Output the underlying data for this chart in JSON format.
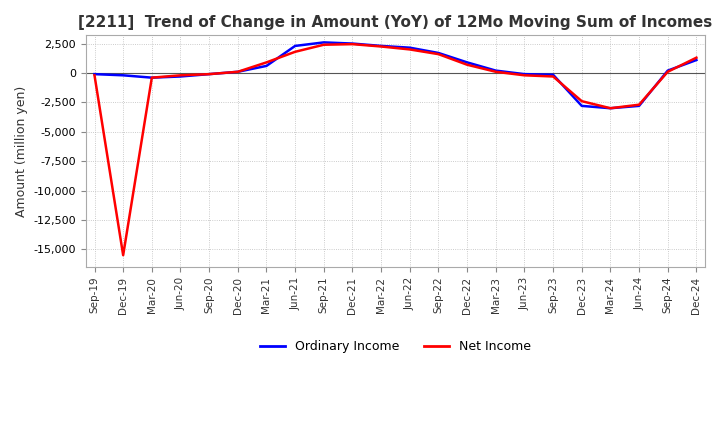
{
  "title": "[2211]  Trend of Change in Amount (YoY) of 12Mo Moving Sum of Incomes",
  "ylabel": "Amount (million yen)",
  "legend_labels": [
    "Ordinary Income",
    "Net Income"
  ],
  "line_colors": [
    "#0000ff",
    "#ff0000"
  ],
  "x_tick_labels": [
    "Sep-19",
    "Dec-19",
    "Mar-20",
    "Jun-20",
    "Sep-20",
    "Dec-20",
    "Mar-21",
    "Jun-21",
    "Sep-21",
    "Dec-21",
    "Mar-22",
    "Jun-22",
    "Sep-22",
    "Dec-22",
    "Mar-23",
    "Jun-23",
    "Sep-23",
    "Dec-23",
    "Mar-24",
    "Jun-24",
    "Sep-24",
    "Dec-24"
  ],
  "ylim": [
    -16500,
    3200
  ],
  "yticks": [
    2500,
    0,
    -2500,
    -5000,
    -7500,
    -10000,
    -12500,
    -15000
  ],
  "ordinary_income": [
    -100,
    -200,
    -400,
    -300,
    -100,
    100,
    600,
    2300,
    2600,
    2500,
    2300,
    2150,
    1700,
    900,
    200,
    -100,
    -150,
    -2800,
    -3000,
    -2800,
    200,
    1100
  ],
  "net_income": [
    -200,
    -15500,
    -400,
    -200,
    -100,
    100,
    900,
    1800,
    2400,
    2450,
    2250,
    2000,
    1600,
    700,
    100,
    -200,
    -300,
    -2400,
    -3000,
    -2700,
    100,
    1300
  ],
  "background_color": "#ffffff",
  "grid_color": "#bbbbbb",
  "title_color": "#333333",
  "zero_line_color": "#555555"
}
